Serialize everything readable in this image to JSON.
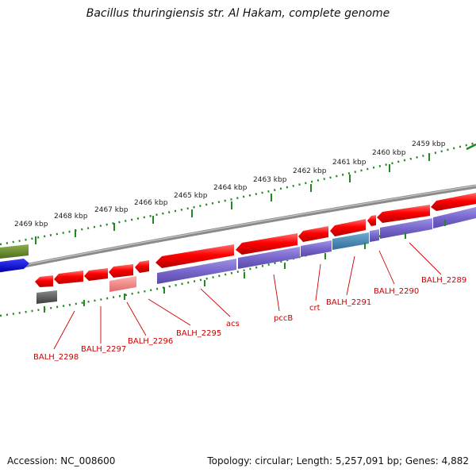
{
  "title": "Bacillus thuringiensis str. Al Hakam, complete genome",
  "footer": {
    "accession": "Accession: NC_008600",
    "summary": "Topology: circular; Length: 5,257,091 bp; Genes: 4,882"
  },
  "scale_ticks": [
    "2469 kbp",
    "2468 kbp",
    "2467 kbp",
    "2466 kbp",
    "2465 kbp",
    "2464 kbp",
    "2463 kbp",
    "2462 kbp",
    "2461 kbp",
    "2460 kbp",
    "2459 kbp"
  ],
  "gene_labels": [
    "BALH_2298",
    "BALH_2297",
    "BALH_2296",
    "BALH_2295",
    "acs",
    "pccB",
    "crt",
    "BALH_2291",
    "BALH_2290",
    "BALH_2289"
  ],
  "colors": {
    "forward_gene": "#ff0000",
    "reverse_gene": "#7766cc",
    "highlight_gene": "#4488bb",
    "label": "#cc0000",
    "backbone": "#888888",
    "tick": "#228822"
  }
}
